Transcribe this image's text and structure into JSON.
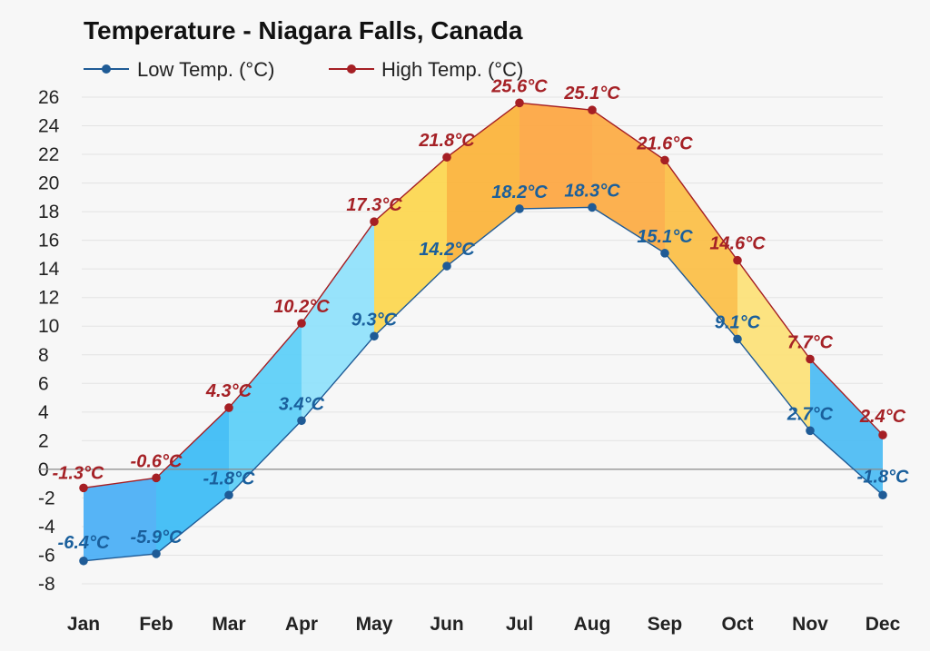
{
  "chart_data": {
    "type": "area",
    "title": "Temperature - Niagara Falls, Canada",
    "categories": [
      "Jan",
      "Feb",
      "Mar",
      "Apr",
      "May",
      "Jun",
      "Jul",
      "Aug",
      "Sep",
      "Oct",
      "Nov",
      "Dec"
    ],
    "series": [
      {
        "name": "Low Temp. (°C)",
        "values": [
          -6.4,
          -5.9,
          -1.8,
          3.4,
          9.3,
          14.2,
          18.2,
          18.3,
          15.1,
          9.1,
          2.7,
          -1.8
        ],
        "labels": [
          "-6.4°C",
          "-5.9°C",
          "-1.8°C",
          "3.4°C",
          "9.3°C",
          "14.2°C",
          "18.2°C",
          "18.3°C",
          "15.1°C",
          "9.1°C",
          "2.7°C",
          "-1.8°C"
        ],
        "color": "#1f5b96"
      },
      {
        "name": "High Temp. (°C)",
        "values": [
          -1.3,
          -0.6,
          4.3,
          10.2,
          17.3,
          21.8,
          25.6,
          25.1,
          21.6,
          14.6,
          7.7,
          2.4
        ],
        "labels": [
          "-1.3°C",
          "-0.6°C",
          "4.3°C",
          "10.2°C",
          "17.3°C",
          "21.8°C",
          "25.6°C",
          "25.1°C",
          "21.6°C",
          "14.6°C",
          "7.7°C",
          "2.4°C"
        ],
        "color": "#a51f24"
      }
    ],
    "ylim": [
      -8,
      26
    ],
    "yticks": [
      "26",
      "24",
      "22",
      "20",
      "18",
      "16",
      "14",
      "12",
      "10",
      "8",
      "6",
      "4",
      "2",
      "0",
      "-2",
      "-4",
      "-6",
      "-8"
    ],
    "grid": true,
    "legend_position": "top-left",
    "band_colors": [
      "#4db0f5",
      "#3fbdf5",
      "#5fd0f8",
      "#91e2fb",
      "#fcd752",
      "#fbb43d",
      "#fda845",
      "#fcad47",
      "#fbc04a",
      "#fce27a",
      "#4fbdf3",
      "#3aa9f0"
    ]
  }
}
